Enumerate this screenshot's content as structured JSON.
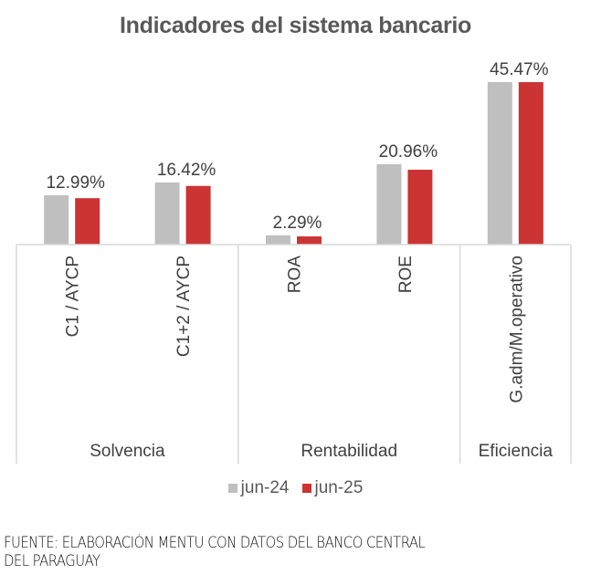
{
  "chart_data": {
    "type": "bar",
    "title": "Indicadores del sistema bancario",
    "xlabel": "",
    "ylabel": "",
    "ylim": [
      0,
      46
    ],
    "grid": false,
    "categories": [
      "C1 / AYCP",
      "C1+2 / AYCP",
      "ROA",
      "ROE",
      "G.adm/M.operativo"
    ],
    "groups": [
      {
        "name": "Solvencia",
        "categories": [
          "C1 / AYCP",
          "C1+2 / AYCP"
        ]
      },
      {
        "name": "Rentabilidad",
        "categories": [
          "ROA",
          "ROE"
        ]
      },
      {
        "name": "Eficiencia",
        "categories": [
          "G.adm/M.operativo"
        ]
      }
    ],
    "series": [
      {
        "name": "jun-24",
        "color": "#BFBFBF",
        "values": [
          13.8,
          17.4,
          2.6,
          22.5,
          45.5
        ]
      },
      {
        "name": "jun-25",
        "color": "#CC3333",
        "values": [
          12.99,
          16.42,
          2.29,
          20.96,
          45.47
        ]
      }
    ],
    "data_labels": [
      "12.99%",
      "16.42%",
      "2.29%",
      "20.96%",
      "45.47%"
    ],
    "legend_position": "bottom"
  },
  "source_note": "FUENTE: ELABORACIÓN MENTU CON DATOS DEL BANCO CENTRAL DEL PARAGUAY",
  "source_lines": [
    "FUENTE: ELABORACIÓN MENTU CON DATOS DEL BANCO CENTRAL",
    "DEL PARAGUAY"
  ]
}
